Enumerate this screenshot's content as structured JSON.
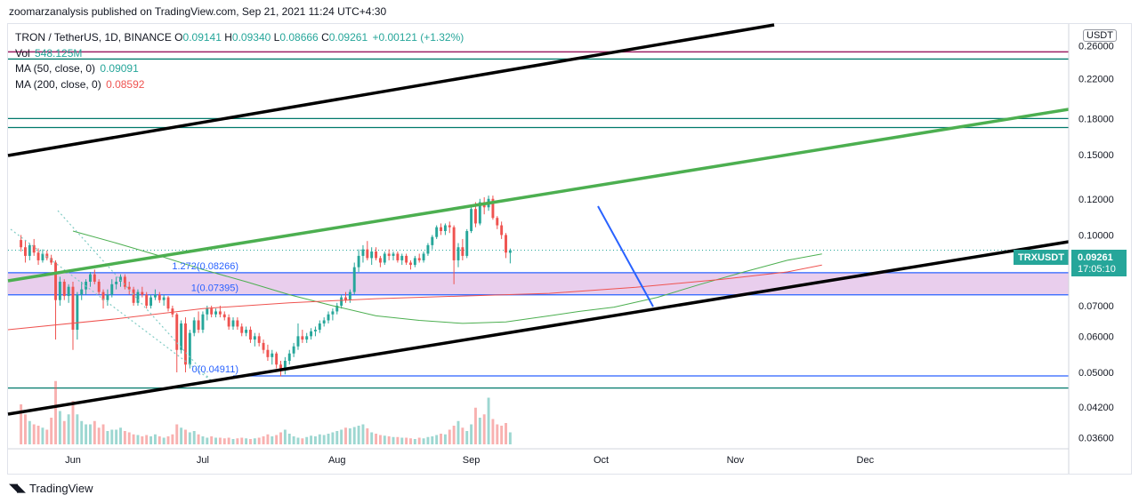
{
  "publisher_line": "zoomarzanalysis published on TradingView.com, Sep 21, 2021 11:24 UTC+4:30",
  "footer_brand": "TradingView",
  "legend": {
    "symbol": "TRON / TetherUS, 1D, BINANCE",
    "o_label": "O",
    "o": "0.09141",
    "h_label": "H",
    "h": "0.09340",
    "l_label": "L",
    "l": "0.08666",
    "c_label": "C",
    "c": "0.09261",
    "change": "+0.00121 (+1.32%)",
    "vol_label": "Vol",
    "vol": "548.125M",
    "ma50_label": "MA (50, close, 0)",
    "ma50": "0.09091",
    "ma200_label": "MA (200, close, 0)",
    "ma200": "0.08592"
  },
  "currency": "USDT",
  "price_badge": {
    "symbol": "TRXUSDT",
    "price": "0.09261",
    "countdown": "17:05:10"
  },
  "colors": {
    "up": "#26a69a",
    "down": "#ef5350",
    "trendline": "#000000",
    "green_line": "#4caf50",
    "blue": "#2962ff",
    "band": "#e1bee7",
    "resistance_purple": "#9c1f63",
    "teal_h": "#00796b",
    "ma50": "#4caf50",
    "ma200": "#ef5350"
  },
  "chart_data": {
    "type": "candlestick",
    "y_scale": "log",
    "ylim": [
      0.034,
      0.29
    ],
    "y_ticks": [
      "0.26000",
      "0.22000",
      "0.18000",
      "0.15000",
      "0.12000",
      "0.10000",
      "0.07000",
      "0.06000",
      "0.05000",
      "0.04200",
      "0.03600"
    ],
    "y_tick_values": [
      0.26,
      0.22,
      0.18,
      0.15,
      0.12,
      0.1,
      0.07,
      0.06,
      0.05,
      0.042,
      0.036
    ],
    "x_ticks": [
      "Jun",
      "Jul",
      "Aug",
      "Sep",
      "Oct",
      "Nov",
      "Dec"
    ],
    "x_tick_days": [
      0,
      30,
      61,
      92,
      122,
      153,
      183
    ],
    "x_range_days": [
      -15,
      230
    ],
    "candles": [
      [
        0.0975,
        0.1,
        0.092,
        0.094
      ],
      [
        0.094,
        0.0975,
        0.087,
        0.09
      ],
      [
        0.09,
        0.096,
        0.088,
        0.095
      ],
      [
        0.095,
        0.098,
        0.09,
        0.0915
      ],
      [
        0.0915,
        0.0935,
        0.086,
        0.088
      ],
      [
        0.088,
        0.093,
        0.087,
        0.091
      ],
      [
        0.091,
        0.0925,
        0.088,
        0.089
      ],
      [
        0.089,
        0.0905,
        0.086,
        0.087
      ],
      [
        0.087,
        0.088,
        0.059,
        0.072
      ],
      [
        0.072,
        0.081,
        0.07,
        0.079
      ],
      [
        0.079,
        0.08,
        0.072,
        0.0735
      ],
      [
        0.0735,
        0.078,
        0.071,
        0.077
      ],
      [
        0.077,
        0.079,
        0.056,
        0.062
      ],
      [
        0.062,
        0.075,
        0.059,
        0.074
      ],
      [
        0.074,
        0.079,
        0.072,
        0.076
      ],
      [
        0.076,
        0.08,
        0.074,
        0.079
      ],
      [
        0.079,
        0.083,
        0.077,
        0.082
      ],
      [
        0.082,
        0.084,
        0.078,
        0.079
      ],
      [
        0.079,
        0.08,
        0.074,
        0.075
      ],
      [
        0.075,
        0.076,
        0.069,
        0.072
      ],
      [
        0.072,
        0.076,
        0.07,
        0.074
      ],
      [
        0.074,
        0.08,
        0.073,
        0.078
      ],
      [
        0.078,
        0.081,
        0.076,
        0.079
      ],
      [
        0.079,
        0.082,
        0.077,
        0.081
      ],
      [
        0.081,
        0.082,
        0.076,
        0.077
      ],
      [
        0.077,
        0.079,
        0.074,
        0.076
      ],
      [
        0.076,
        0.077,
        0.07,
        0.071
      ],
      [
        0.071,
        0.076,
        0.07,
        0.075
      ],
      [
        0.075,
        0.077,
        0.073,
        0.074
      ],
      [
        0.074,
        0.075,
        0.069,
        0.07
      ],
      [
        0.07,
        0.074,
        0.069,
        0.073
      ],
      [
        0.073,
        0.076,
        0.072,
        0.074
      ],
      [
        0.074,
        0.075,
        0.071,
        0.072
      ],
      [
        0.072,
        0.074,
        0.07,
        0.073
      ],
      [
        0.073,
        0.0735,
        0.068,
        0.069
      ],
      [
        0.069,
        0.07,
        0.066,
        0.067
      ],
      [
        0.067,
        0.0675,
        0.05,
        0.056
      ],
      [
        0.056,
        0.065,
        0.055,
        0.064
      ],
      [
        0.064,
        0.066,
        0.05,
        0.052
      ],
      [
        0.052,
        0.062,
        0.051,
        0.061
      ],
      [
        0.061,
        0.066,
        0.06,
        0.065
      ],
      [
        0.065,
        0.068,
        0.061,
        0.062
      ],
      [
        0.062,
        0.068,
        0.061,
        0.067
      ],
      [
        0.067,
        0.07,
        0.065,
        0.069
      ],
      [
        0.069,
        0.07,
        0.066,
        0.067
      ],
      [
        0.067,
        0.069,
        0.066,
        0.068
      ],
      [
        0.068,
        0.07,
        0.066,
        0.067
      ],
      [
        0.067,
        0.068,
        0.065,
        0.066
      ],
      [
        0.066,
        0.067,
        0.062,
        0.063
      ],
      [
        0.063,
        0.066,
        0.062,
        0.065
      ],
      [
        0.065,
        0.066,
        0.062,
        0.063
      ],
      [
        0.063,
        0.064,
        0.06,
        0.061
      ],
      [
        0.061,
        0.063,
        0.06,
        0.062
      ],
      [
        0.062,
        0.063,
        0.058,
        0.059
      ],
      [
        0.059,
        0.061,
        0.057,
        0.06
      ],
      [
        0.06,
        0.061,
        0.057,
        0.058
      ],
      [
        0.058,
        0.059,
        0.055,
        0.056
      ],
      [
        0.056,
        0.0575,
        0.053,
        0.054
      ],
      [
        0.054,
        0.056,
        0.052,
        0.055
      ],
      [
        0.055,
        0.0555,
        0.051,
        0.052
      ],
      [
        0.052,
        0.053,
        0.049,
        0.0505
      ],
      [
        0.0505,
        0.054,
        0.0495,
        0.053
      ],
      [
        0.053,
        0.056,
        0.052,
        0.055
      ],
      [
        0.055,
        0.058,
        0.054,
        0.057
      ],
      [
        0.057,
        0.064,
        0.056,
        0.06
      ],
      [
        0.06,
        0.062,
        0.058,
        0.059
      ],
      [
        0.059,
        0.061,
        0.058,
        0.06
      ],
      [
        0.06,
        0.0625,
        0.059,
        0.0615
      ],
      [
        0.0615,
        0.063,
        0.06,
        0.062
      ],
      [
        0.062,
        0.065,
        0.061,
        0.064
      ],
      [
        0.064,
        0.066,
        0.063,
        0.065
      ],
      [
        0.065,
        0.068,
        0.064,
        0.067
      ],
      [
        0.067,
        0.069,
        0.065,
        0.068
      ],
      [
        0.068,
        0.071,
        0.067,
        0.07
      ],
      [
        0.07,
        0.074,
        0.069,
        0.073
      ],
      [
        0.073,
        0.075,
        0.071,
        0.072
      ],
      [
        0.072,
        0.076,
        0.071,
        0.075
      ],
      [
        0.075,
        0.087,
        0.074,
        0.085
      ],
      [
        0.085,
        0.093,
        0.083,
        0.09
      ],
      [
        0.09,
        0.095,
        0.087,
        0.093
      ],
      [
        0.093,
        0.097,
        0.088,
        0.089
      ],
      [
        0.089,
        0.094,
        0.086,
        0.092
      ],
      [
        0.092,
        0.094,
        0.088,
        0.089
      ],
      [
        0.089,
        0.09,
        0.085,
        0.087
      ],
      [
        0.087,
        0.092,
        0.086,
        0.091
      ],
      [
        0.091,
        0.093,
        0.088,
        0.09
      ],
      [
        0.09,
        0.092,
        0.088,
        0.091
      ],
      [
        0.091,
        0.092,
        0.087,
        0.088
      ],
      [
        0.088,
        0.091,
        0.086,
        0.09
      ],
      [
        0.09,
        0.091,
        0.086,
        0.087
      ],
      [
        0.087,
        0.088,
        0.084,
        0.086
      ],
      [
        0.086,
        0.09,
        0.085,
        0.089
      ],
      [
        0.089,
        0.091,
        0.087,
        0.088
      ],
      [
        0.088,
        0.092,
        0.087,
        0.091
      ],
      [
        0.091,
        0.096,
        0.09,
        0.095
      ],
      [
        0.095,
        0.1,
        0.093,
        0.099
      ],
      [
        0.099,
        0.105,
        0.098,
        0.104
      ],
      [
        0.104,
        0.106,
        0.1,
        0.102
      ],
      [
        0.102,
        0.106,
        0.1,
        0.105
      ],
      [
        0.105,
        0.107,
        0.101,
        0.104
      ],
      [
        0.104,
        0.105,
        0.078,
        0.088
      ],
      [
        0.088,
        0.096,
        0.085,
        0.094
      ],
      [
        0.094,
        0.098,
        0.088,
        0.09
      ],
      [
        0.09,
        0.103,
        0.089,
        0.102
      ],
      [
        0.102,
        0.116,
        0.101,
        0.114
      ],
      [
        0.114,
        0.118,
        0.104,
        0.106
      ],
      [
        0.106,
        0.12,
        0.105,
        0.118
      ],
      [
        0.118,
        0.121,
        0.111,
        0.115
      ],
      [
        0.115,
        0.122,
        0.113,
        0.12
      ],
      [
        0.12,
        0.122,
        0.108,
        0.109
      ],
      [
        0.109,
        0.11,
        0.103,
        0.105
      ],
      [
        0.105,
        0.107,
        0.098,
        0.1
      ],
      [
        0.1,
        0.101,
        0.089,
        0.0915
      ],
      [
        0.09141,
        0.0934,
        0.08666,
        0.09261
      ]
    ],
    "volume_scale_max": 100,
    "volume": [
      60,
      45,
      35,
      30,
      28,
      25,
      22,
      40,
      95,
      50,
      35,
      45,
      65,
      45,
      35,
      30,
      30,
      35,
      25,
      30,
      20,
      22,
      22,
      25,
      20,
      18,
      15,
      14,
      12,
      14,
      12,
      15,
      12,
      10,
      12,
      15,
      30,
      25,
      22,
      18,
      20,
      15,
      12,
      10,
      12,
      10,
      10,
      9,
      10,
      8,
      9,
      10,
      9,
      8,
      9,
      10,
      12,
      15,
      12,
      14,
      18,
      22,
      16,
      12,
      10,
      9,
      11,
      13,
      12,
      15,
      14,
      16,
      18,
      20,
      22,
      25,
      24,
      26,
      28,
      30,
      24,
      18,
      16,
      14,
      13,
      12,
      11,
      11,
      10,
      10,
      9,
      8,
      10,
      9,
      11,
      12,
      14,
      16,
      15,
      22,
      28,
      35,
      25,
      20,
      30,
      55,
      40,
      45,
      70,
      38,
      30,
      28,
      32,
      18,
      5
    ],
    "ma50": [
      [
        0,
        0.102
      ],
      [
        10,
        0.096
      ],
      [
        20,
        0.09
      ],
      [
        30,
        0.084
      ],
      [
        40,
        0.079
      ],
      [
        50,
        0.074
      ],
      [
        60,
        0.07
      ],
      [
        70,
        0.0665
      ],
      [
        80,
        0.065
      ],
      [
        90,
        0.064
      ],
      [
        100,
        0.0645
      ],
      [
        110,
        0.0665
      ],
      [
        117,
        0.068
      ],
      [
        125,
        0.0695
      ],
      [
        135,
        0.073
      ],
      [
        145,
        0.078
      ],
      [
        155,
        0.083
      ],
      [
        165,
        0.088
      ],
      [
        173,
        0.0909
      ]
    ],
    "ma200": [
      [
        -15,
        0.062
      ],
      [
        10,
        0.0655
      ],
      [
        30,
        0.069
      ],
      [
        50,
        0.071
      ],
      [
        70,
        0.0725
      ],
      [
        90,
        0.0735
      ],
      [
        110,
        0.0745
      ],
      [
        130,
        0.0768
      ],
      [
        150,
        0.08
      ],
      [
        165,
        0.083
      ],
      [
        173,
        0.0859
      ]
    ],
    "fib_levels": [
      {
        "label": "1.272(0.08266)",
        "value": 0.08266
      },
      {
        "label": "1(0.07395)",
        "value": 0.07395
      },
      {
        "label": "0(0.04911)",
        "value": 0.04911
      }
    ]
  }
}
